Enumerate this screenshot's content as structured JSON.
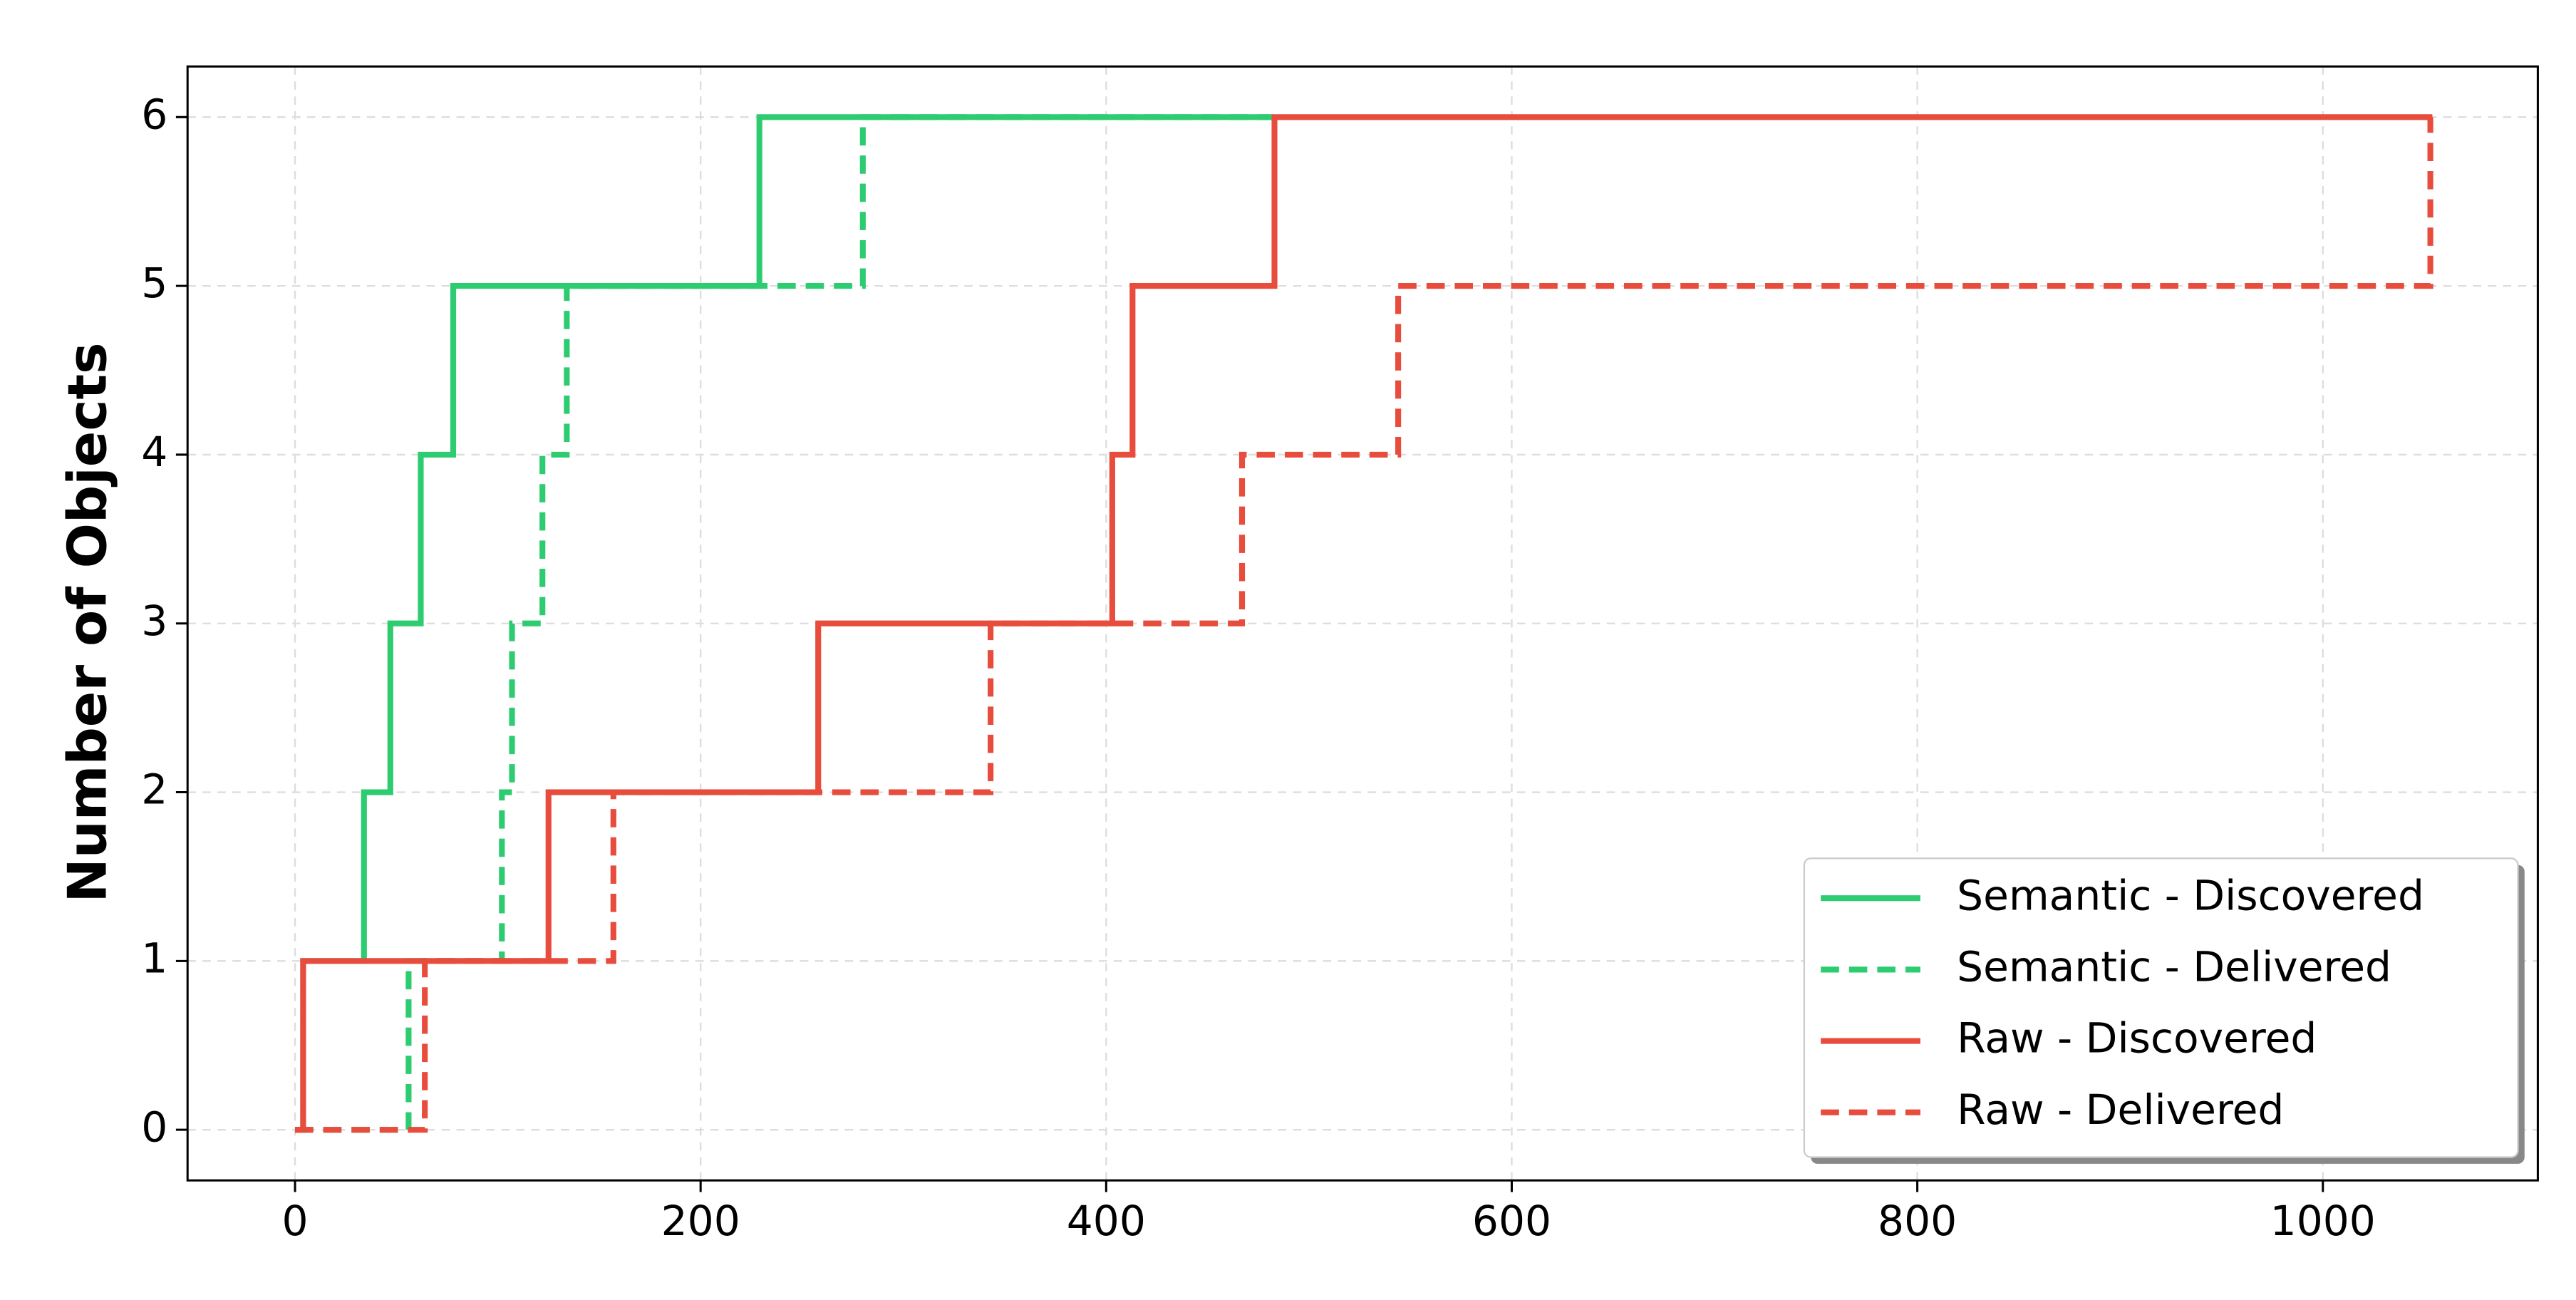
{
  "chart_data": {
    "type": "line",
    "step": "post",
    "ylabel": "Number of Objects",
    "xlim": [
      -53,
      1106
    ],
    "ylim": [
      -0.3,
      6.3
    ],
    "xticks": [
      0,
      200,
      400,
      600,
      800,
      1000
    ],
    "yticks": [
      0,
      1,
      2,
      3,
      4,
      5,
      6
    ],
    "grid": true,
    "legend": "lower right",
    "series": [
      {
        "name": "Semantic - Discovered",
        "color": "#2ecc71",
        "dash": "solid",
        "x": [
          0,
          4,
          34,
          47,
          62,
          78,
          229,
          482
        ],
        "values": [
          0,
          1,
          2,
          3,
          4,
          5,
          6,
          6
        ]
      },
      {
        "name": "Semantic - Delivered",
        "color": "#2ecc71",
        "dash": "dashed",
        "x": [
          0,
          56,
          102,
          107,
          122,
          134,
          280,
          482
        ],
        "values": [
          0,
          1,
          2,
          3,
          4,
          5,
          6,
          6
        ]
      },
      {
        "name": "Raw - Discovered",
        "color": "#e74c3c",
        "dash": "solid",
        "x": [
          0,
          4,
          125,
          258,
          403,
          413,
          483,
          1054
        ],
        "values": [
          0,
          1,
          2,
          3,
          4,
          5,
          6,
          6
        ]
      },
      {
        "name": "Raw - Delivered",
        "color": "#e74c3c",
        "dash": "dashed",
        "x": [
          0,
          64,
          157,
          343,
          467,
          544,
          1053
        ],
        "values": [
          0,
          1,
          2,
          3,
          4,
          5,
          6
        ]
      }
    ]
  }
}
